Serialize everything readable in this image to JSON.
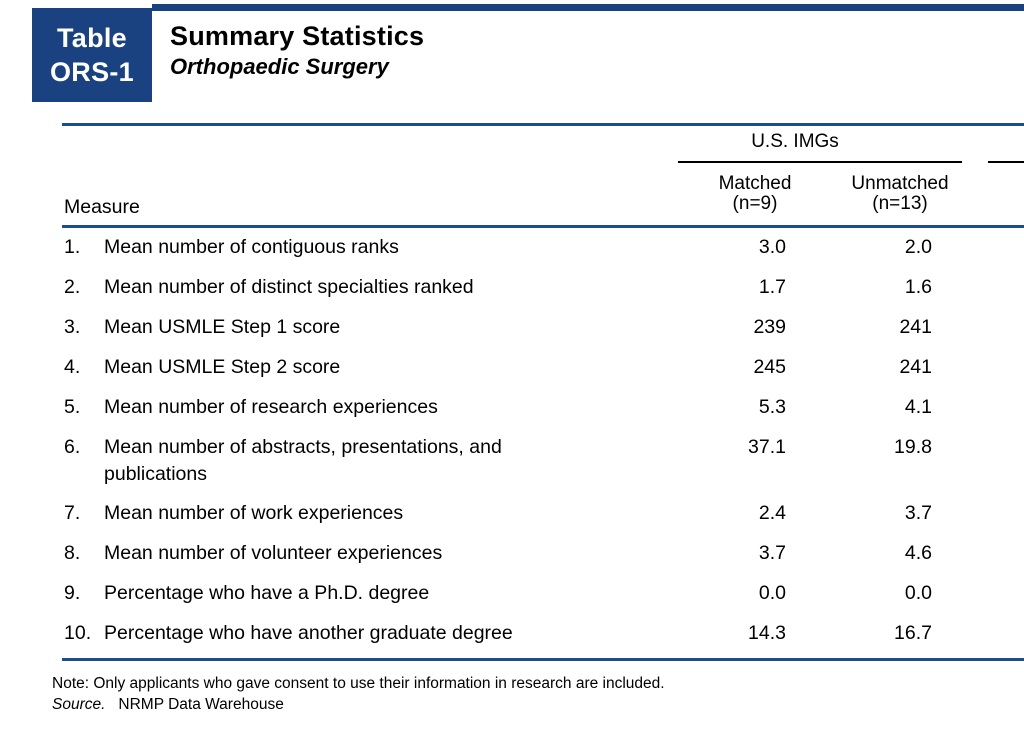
{
  "header": {
    "badge_line1": "Table",
    "badge_line2": "ORS-1",
    "title": "Summary Statistics",
    "subtitle": "Orthopaedic Surgery"
  },
  "table": {
    "measure_header": "Measure",
    "group_header": "U.S. IMGs",
    "columns": [
      {
        "label": "Matched",
        "sub": "(n=9)"
      },
      {
        "label": "Unmatched",
        "sub": "(n=13)"
      }
    ],
    "rows": [
      {
        "num": "1.",
        "label": "Mean number of contiguous ranks",
        "matched": "3.0",
        "unmatched": "2.0"
      },
      {
        "num": "2.",
        "label": "Mean number of distinct specialties ranked",
        "matched": "1.7",
        "unmatched": "1.6"
      },
      {
        "num": "3.",
        "label": "Mean USMLE Step 1 score",
        "matched": "239",
        "unmatched": "241"
      },
      {
        "num": "4.",
        "label": "Mean USMLE Step 2 score",
        "matched": "245",
        "unmatched": "241"
      },
      {
        "num": "5.",
        "label": "Mean number of research experiences",
        "matched": "5.3",
        "unmatched": "4.1"
      },
      {
        "num": "6.",
        "label": "Mean number of abstracts, presentations, and publications",
        "matched": "37.1",
        "unmatched": "19.8"
      },
      {
        "num": "7.",
        "label": "Mean number of work experiences",
        "matched": "2.4",
        "unmatched": "3.7"
      },
      {
        "num": "8.",
        "label": "Mean number of volunteer experiences",
        "matched": "3.7",
        "unmatched": "4.6"
      },
      {
        "num": "9.",
        "label": "Percentage who have a Ph.D. degree",
        "matched": "0.0",
        "unmatched": "0.0"
      },
      {
        "num": "10.",
        "label": "Percentage who have another graduate degree",
        "matched": "14.3",
        "unmatched": "16.7"
      }
    ]
  },
  "footer": {
    "note": "Note: Only applicants who gave consent to use their information in research are included.",
    "source_label": "Source.",
    "source_text": "NRMP Data Warehouse"
  },
  "colors": {
    "badge_navy": "#1a4280",
    "rule_blue": "#1d4d8c",
    "spanner_black": "#000000"
  }
}
